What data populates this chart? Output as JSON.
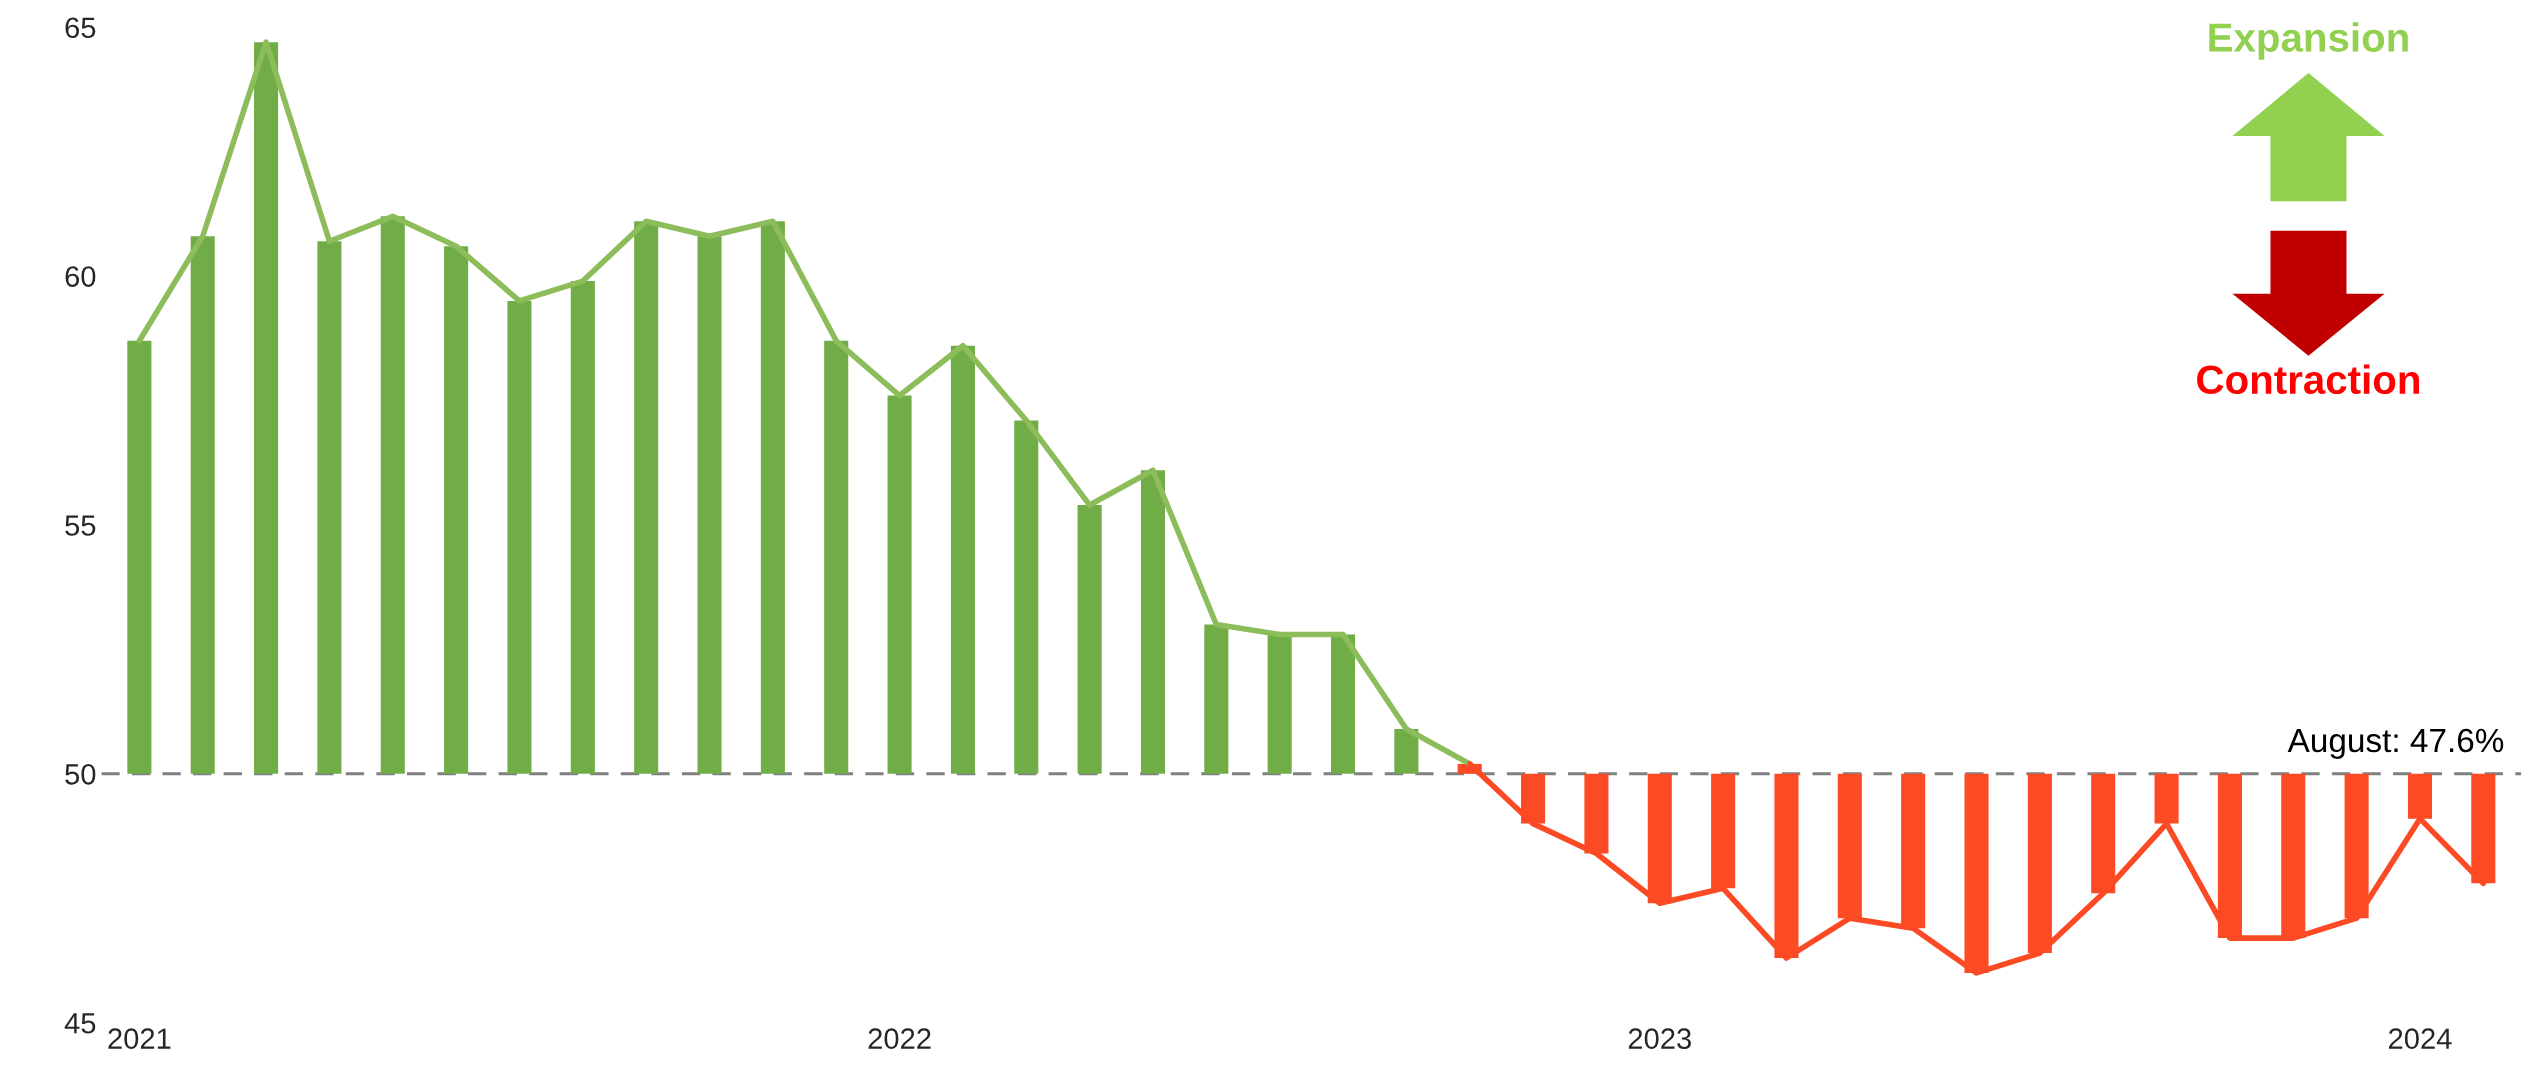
{
  "chart_data": {
    "type": "bar",
    "categories": [
      "2021",
      null,
      null,
      null,
      null,
      null,
      null,
      null,
      null,
      null,
      null,
      null,
      "2022",
      null,
      null,
      null,
      null,
      null,
      null,
      null,
      null,
      null,
      null,
      null,
      "2023",
      null,
      null,
      null,
      null,
      null,
      null,
      null,
      null,
      null,
      null,
      null,
      "2024",
      null
    ],
    "series": [
      {
        "color": "#70ad47",
        "base": [
          50,
          50,
          50,
          50,
          50,
          50,
          50,
          50,
          50,
          50,
          50,
          50,
          50,
          50,
          50,
          50,
          50,
          50,
          50,
          50,
          50,
          null,
          null,
          null,
          null,
          null,
          null,
          null,
          null,
          null,
          null,
          null,
          null,
          null,
          null,
          null,
          null,
          null
        ],
        "values": [
          8.7,
          10.8,
          14.7,
          10.7,
          11.2,
          10.6,
          9.5,
          9.9,
          11.1,
          10.8,
          11.1,
          8.7,
          7.6,
          8.6,
          7.1,
          5.4,
          6.1,
          3.0,
          2.8,
          2.8,
          0.9,
          null,
          null,
          null,
          null,
          null,
          null,
          null,
          null,
          null,
          null,
          null,
          null,
          null,
          null,
          null,
          null,
          null
        ]
      },
      {
        "color": "#fc4a24",
        "base": [
          null,
          null,
          null,
          null,
          null,
          null,
          null,
          null,
          null,
          null,
          null,
          null,
          null,
          null,
          null,
          null,
          null,
          null,
          null,
          null,
          null,
          50,
          50,
          50,
          50,
          50,
          50,
          50,
          50,
          50,
          50,
          50,
          50,
          50,
          50,
          50,
          50,
          50
        ],
        "values": [
          null,
          null,
          null,
          null,
          null,
          null,
          null,
          null,
          null,
          null,
          null,
          null,
          null,
          null,
          null,
          null,
          null,
          null,
          null,
          null,
          null,
          0.2,
          -1.0,
          -1.6,
          -2.6,
          -2.3,
          -3.7,
          -2.9,
          -3.1,
          -4.0,
          -3.6,
          -2.4,
          -1.0,
          -3.3,
          -3.3,
          -2.9,
          -0.9,
          -2.2
        ]
      },
      {
        "type": "line",
        "color": "#8cbd5a",
        "values": [
          58.7,
          60.8,
          64.7,
          60.7,
          61.2,
          60.6,
          59.5,
          59.9,
          61.1,
          60.8,
          61.1,
          58.7,
          57.6,
          58.6,
          57.1,
          55.4,
          56.1,
          53.0,
          52.8,
          52.8,
          50.9,
          50.2,
          null,
          null,
          null,
          null,
          null,
          null,
          null,
          null,
          null,
          null,
          null,
          null,
          null,
          null,
          null,
          null
        ]
      },
      {
        "type": "line",
        "color": "#fc4a24",
        "values": [
          null,
          null,
          null,
          null,
          null,
          null,
          null,
          null,
          null,
          null,
          null,
          null,
          null,
          null,
          null,
          null,
          null,
          null,
          null,
          null,
          null,
          50.2,
          49.0,
          48.4,
          47.4,
          47.7,
          46.3,
          47.1,
          46.9,
          46.0,
          46.4,
          47.6,
          49.0,
          46.7,
          46.7,
          47.1,
          49.1,
          47.8
        ]
      }
    ],
    "ylim": [
      45,
      65
    ],
    "yticks": [
      45,
      50,
      55,
      60,
      65
    ],
    "ref_lines": [
      {
        "axis": "y",
        "value": 50,
        "color": "#808080",
        "line_style": "dashed"
      }
    ],
    "annotations": [
      "Expansion",
      "Contraction",
      "August: 47.6%"
    ],
    "grid": false,
    "legend": false
  }
}
